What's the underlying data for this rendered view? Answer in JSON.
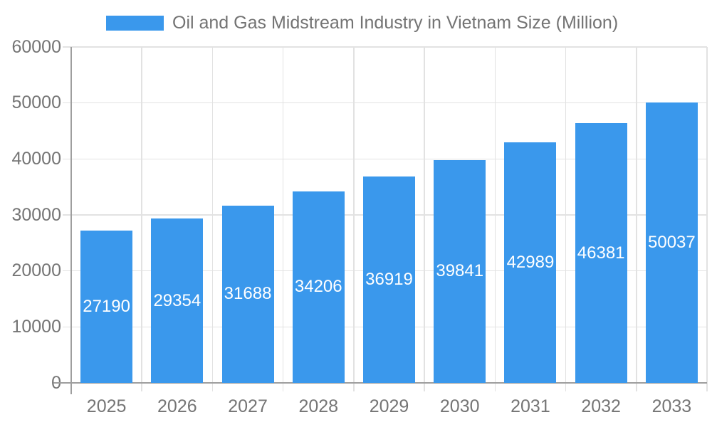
{
  "legend": {
    "label": "Oil and Gas Midstream Industry in Vietnam Size (Million)"
  },
  "chart_data": {
    "type": "bar",
    "title": "Oil and Gas Midstream Industry in Vietnam Size (Million)",
    "categories": [
      "2025",
      "2026",
      "2027",
      "2028",
      "2029",
      "2030",
      "2031",
      "2032",
      "2033"
    ],
    "values": [
      27190,
      29354,
      31688,
      34206,
      36919,
      39841,
      42989,
      46381,
      50037
    ],
    "xlabel": "",
    "ylabel": "",
    "ylim": [
      0,
      60000
    ],
    "yticks": [
      0,
      10000,
      20000,
      30000,
      40000,
      50000,
      60000
    ],
    "grid": true,
    "legend_position": "top",
    "value_labels": "inside-middle",
    "colors": {
      "bar": "#3a98ec",
      "bar_label": "#ffffff",
      "axis_text": "#757575",
      "title_text": "#737373",
      "gridline": "#e2e2e2",
      "axis_line": "#9e9e9e"
    }
  }
}
